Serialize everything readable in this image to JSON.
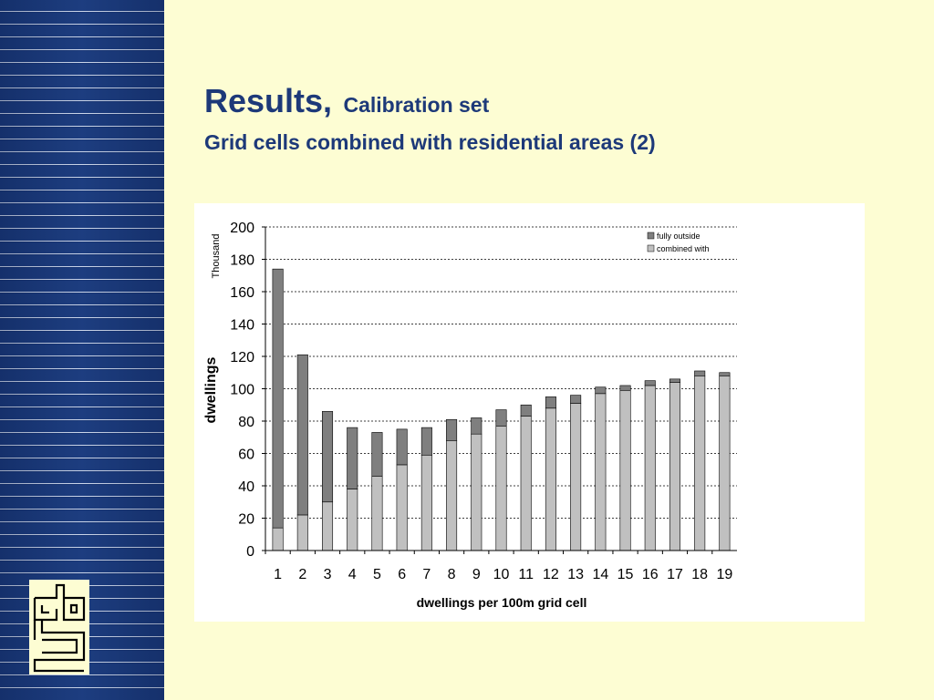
{
  "slide": {
    "title": "Results,",
    "title_suffix": "Calibration set",
    "subtitle": "Grid cells combined with residential areas (2)"
  },
  "colors": {
    "title": "#1d3979",
    "background": "#fdfdd3",
    "sidebar": "#1b3a7a",
    "series_outside": "#7f7f7f",
    "series_combined": "#c0c0c0"
  },
  "logo": {
    "icon": "cbs-logo-icon"
  },
  "chart_data": {
    "type": "bar",
    "stacked": true,
    "categories": [
      "1",
      "2",
      "3",
      "4",
      "5",
      "6",
      "7",
      "8",
      "9",
      "10",
      "11",
      "12",
      "13",
      "14",
      "15",
      "16",
      "17",
      "18",
      "19"
    ],
    "series": [
      {
        "name": "combined with",
        "color": "#c0c0c0",
        "values": [
          14,
          22,
          30,
          38,
          46,
          53,
          59,
          68,
          72,
          77,
          83,
          88,
          91,
          97,
          99,
          102,
          104,
          108,
          108
        ]
      },
      {
        "name": "fully outside",
        "color": "#7f7f7f",
        "values": [
          160,
          99,
          56,
          38,
          27,
          22,
          17,
          13,
          10,
          10,
          7,
          7,
          5,
          4,
          3,
          3,
          2,
          3,
          2
        ]
      }
    ],
    "title": "",
    "xlabel": "dwellings per 100m grid cell",
    "ylabel": "dwellings",
    "yunit": "Thousand",
    "ylim": [
      0,
      200
    ],
    "yticks": [
      0,
      20,
      40,
      60,
      80,
      100,
      120,
      140,
      160,
      180,
      200
    ],
    "grid": "horizontal dashed",
    "legend_position": "top-right"
  }
}
